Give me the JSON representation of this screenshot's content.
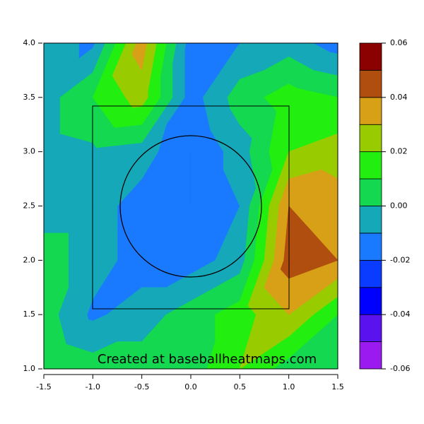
{
  "chart_data": {
    "type": "contour",
    "annotation": "Created at baseballheatmaps.com",
    "x": [
      -1.5,
      -1.0,
      -0.5,
      0.0,
      0.5,
      1.0,
      1.5
    ],
    "y": [
      1.0,
      1.5,
      2.0,
      2.5,
      3.0,
      3.5,
      4.0
    ],
    "z": [
      [
        0.01,
        0.005,
        0.005,
        0.005,
        0.02,
        0.005,
        0.005
      ],
      [
        0.005,
        -0.012,
        -0.005,
        0.005,
        0.015,
        0.03,
        0.01
      ],
      [
        0.005,
        -0.005,
        -0.015,
        -0.015,
        -0.005,
        0.045,
        0.04
      ],
      [
        -0.005,
        -0.005,
        -0.015,
        -0.02,
        -0.01,
        0.04,
        0.035
      ],
      [
        -0.005,
        -0.002,
        -0.005,
        -0.02,
        -0.005,
        0.02,
        0.025
      ],
      [
        -0.005,
        0.01,
        0.025,
        -0.015,
        0.005,
        0.015,
        0.01
      ],
      [
        -0.005,
        -0.012,
        0.035,
        -0.015,
        -0.01,
        -0.005,
        -0.015
      ]
    ],
    "levels": [
      -0.06,
      -0.05,
      -0.04,
      -0.03,
      -0.02,
      -0.01,
      0.0,
      0.01,
      0.02,
      0.03,
      0.04,
      0.05,
      0.06
    ],
    "colors": [
      "#9a1af0",
      "#5a12ee",
      "#0000ff",
      "#0a3cff",
      "#1a7aff",
      "#14a8b8",
      "#14d850",
      "#22ee10",
      "#99cc00",
      "#d8a017",
      "#b04e0f",
      "#8b0000"
    ],
    "xlim": [
      -1.5,
      1.5
    ],
    "ylim": [
      1.0,
      4.0
    ],
    "xticks": [
      -1.5,
      {
        "value": -1.0,
        "label": "-1.0"
      },
      -0.5,
      {
        "value": 0.0,
        "label": "0.0"
      },
      0.5,
      {
        "value": 1.0,
        "label": "1.0"
      },
      1.5
    ],
    "yticks": [
      {
        "value": 1.0,
        "label": "1.0"
      },
      1.5,
      {
        "value": 2.0,
        "label": "2.0"
      },
      2.5,
      {
        "value": 3.0,
        "label": "3.0"
      },
      3.5,
      {
        "value": 4.0,
        "label": "4.0"
      }
    ],
    "zticks": [
      -0.06,
      -0.04,
      -0.02,
      {
        "value": 0.0,
        "label": "0.00"
      },
      0.02,
      0.04,
      0.06
    ]
  }
}
